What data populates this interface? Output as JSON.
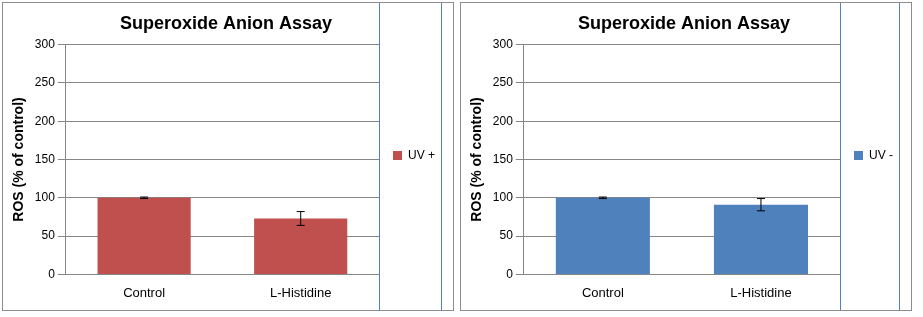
{
  "chart_data": [
    {
      "type": "bar",
      "title": "Superoxide Anion Assay",
      "y_label": "ROS (% of control)",
      "categories": [
        "Control",
        "L-Histidine"
      ],
      "series": [
        {
          "name": "UV +",
          "color": "#c0504d",
          "values": [
            100,
            73
          ],
          "errors": [
            1,
            9
          ]
        }
      ],
      "ylim": [
        0,
        300
      ],
      "yticks": [
        0,
        50,
        100,
        150,
        200,
        250,
        300
      ],
      "grid": true,
      "legend": "right"
    },
    {
      "type": "bar",
      "title": "Superoxide Anion Assay",
      "y_label": "ROS (% of control)",
      "categories": [
        "Control",
        "L-Histidine"
      ],
      "series": [
        {
          "name": "UV -",
          "color": "#4f81bd",
          "values": [
            100,
            91
          ],
          "errors": [
            1,
            8
          ]
        }
      ],
      "ylim": [
        0,
        300
      ],
      "yticks": [
        0,
        50,
        100,
        150,
        200,
        250,
        300
      ],
      "grid": true,
      "legend": "right"
    }
  ]
}
